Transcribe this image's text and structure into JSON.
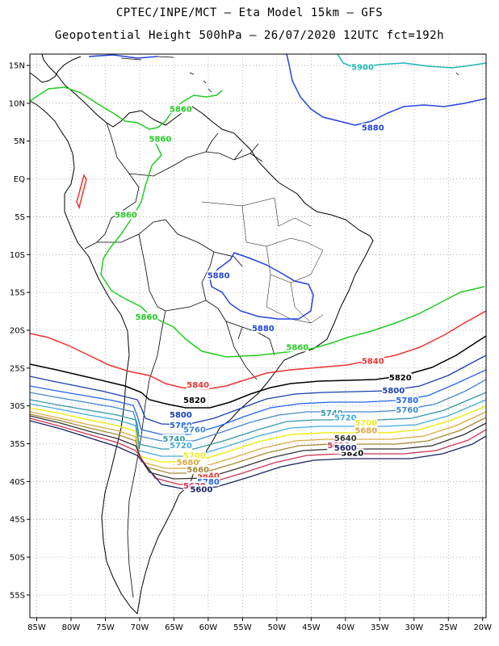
{
  "title": {
    "line1": "CPTEC/INPE/MCT –  Eta Model 15km – GFS",
    "line2": "Geopotential Height 500hPa – 26/07/2020 12UTC fct=192h"
  },
  "axes": {
    "lat_labels": [
      "15N",
      "10N",
      "5N",
      "EQ",
      "5S",
      "10S",
      "15S",
      "20S",
      "25S",
      "30S",
      "35S",
      "40S",
      "45S",
      "50S",
      "55S"
    ],
    "lon_labels": [
      "85W",
      "80W",
      "75W",
      "70W",
      "65W",
      "60W",
      "55W",
      "50W",
      "45W",
      "40W",
      "35W",
      "30W",
      "25W",
      "20W"
    ],
    "lat_values": [
      15,
      10,
      5,
      0,
      -5,
      -10,
      -15,
      -20,
      -25,
      -30,
      -35,
      -40,
      -45,
      -50,
      -55
    ],
    "lon_values": [
      -85,
      -80,
      -75,
      -70,
      -65,
      -60,
      -55,
      -50,
      -45,
      -40,
      -35,
      -30,
      -25,
      -20
    ],
    "lat_range": [
      -58,
      16.5
    ],
    "lon_range": [
      -86,
      -19.5
    ],
    "grid": "dotted"
  },
  "contours": [
    {
      "level": "5900",
      "color": "#1fb5b5",
      "labels": [
        {
          "text": "5900",
          "lon": -37.5,
          "lat": 14.5
        }
      ]
    },
    {
      "level": "5880",
      "color": "#2244dd",
      "labels": [
        {
          "text": "5880",
          "lon": -36,
          "lat": 6.5
        },
        {
          "text": "5880",
          "lon": -58.5,
          "lat": -13
        },
        {
          "text": "5880",
          "lon": -52,
          "lat": -20
        }
      ]
    },
    {
      "level": "5860",
      "color": "#22cc22",
      "labels": [
        {
          "text": "5860",
          "lon": -64,
          "lat": 9
        },
        {
          "text": "5860",
          "lon": -67,
          "lat": 5
        },
        {
          "text": "5860",
          "lon": -72,
          "lat": -5
        },
        {
          "text": "5860",
          "lon": -69,
          "lat": -18.5
        },
        {
          "text": "5860",
          "lon": -47,
          "lat": -22.5
        }
      ]
    },
    {
      "level": "5840",
      "color": "#ee3333",
      "labels": [
        {
          "text": "5840",
          "lon": -61.5,
          "lat": -27.5
        },
        {
          "text": "5840",
          "lon": -36,
          "lat": -24.3
        },
        {
          "text": "5840",
          "lon": -60,
          "lat": -39.5
        },
        {
          "text": "5840",
          "lon": -40,
          "lat": -36
        }
      ]
    },
    {
      "level": "5820",
      "color": "#000000",
      "labels": [
        {
          "text": "5820",
          "lon": -62,
          "lat": -29.5
        },
        {
          "text": "5820",
          "lon": -32,
          "lat": -26.5
        },
        {
          "text": "5820",
          "lon": -39,
          "lat": -36.5
        }
      ]
    },
    {
      "level": "5800",
      "color": "#1a3fb0",
      "labels": [
        {
          "text": "5800",
          "lon": -33,
          "lat": -28.2
        },
        {
          "text": "5800",
          "lon": -64,
          "lat": -31.4
        },
        {
          "text": "5800",
          "lon": -61.5,
          "lat": -38.7
        }
      ]
    },
    {
      "level": "5780",
      "color": "#2266ee",
      "labels": [
        {
          "text": "5780",
          "lon": -31,
          "lat": -29.5
        },
        {
          "text": "5780",
          "lon": -64,
          "lat": -32.8
        },
        {
          "text": "5780",
          "lon": -60,
          "lat": -40.3
        }
      ]
    },
    {
      "level": "5760",
      "color": "#4488cc",
      "labels": [
        {
          "text": "5760",
          "lon": -31,
          "lat": -30.8
        },
        {
          "text": "5760",
          "lon": -62,
          "lat": -33.4
        }
      ]
    },
    {
      "level": "5740",
      "color": "#3399aa",
      "labels": [
        {
          "text": "5740",
          "lon": -42,
          "lat": -31.2
        },
        {
          "text": "5740",
          "lon": -65,
          "lat": -34.6
        }
      ]
    },
    {
      "level": "5720",
      "color": "#44aadd",
      "labels": [
        {
          "text": "5720",
          "lon": -40,
          "lat": -31.8
        },
        {
          "text": "5720",
          "lon": -64,
          "lat": -35.5
        }
      ]
    },
    {
      "level": "5700",
      "color": "#eeee22",
      "labels": [
        {
          "text": "5700",
          "lon": -37,
          "lat": -32.5
        },
        {
          "text": "5700",
          "lon": -62,
          "lat": -36.8
        }
      ]
    },
    {
      "level": "5680",
      "color": "#ddaa44",
      "labels": [
        {
          "text": "5680",
          "lon": -37,
          "lat": -33.5
        },
        {
          "text": "5680",
          "lon": -63,
          "lat": -37.7
        }
      ]
    },
    {
      "level": "5660",
      "color": "#aa8833",
      "labels": [
        {
          "text": "5660",
          "lon": -61.5,
          "lat": -38.7
        }
      ]
    },
    {
      "level": "5640",
      "color": "#333333",
      "labels": [
        {
          "text": "5640",
          "lon": -40,
          "lat": -34.5
        }
      ]
    },
    {
      "level": "5620",
      "color": "#cc3355",
      "labels": [
        {
          "text": "5620",
          "lon": -41,
          "lat": -35.5
        },
        {
          "text": "5620",
          "lon": -62,
          "lat": -40.8
        }
      ]
    },
    {
      "level": "5600",
      "color": "#1a2266",
      "labels": [
        {
          "text": "5600",
          "lon": -40,
          "lat": -35.8
        },
        {
          "text": "5600",
          "lon": -61,
          "lat": -41.3
        }
      ]
    }
  ]
}
